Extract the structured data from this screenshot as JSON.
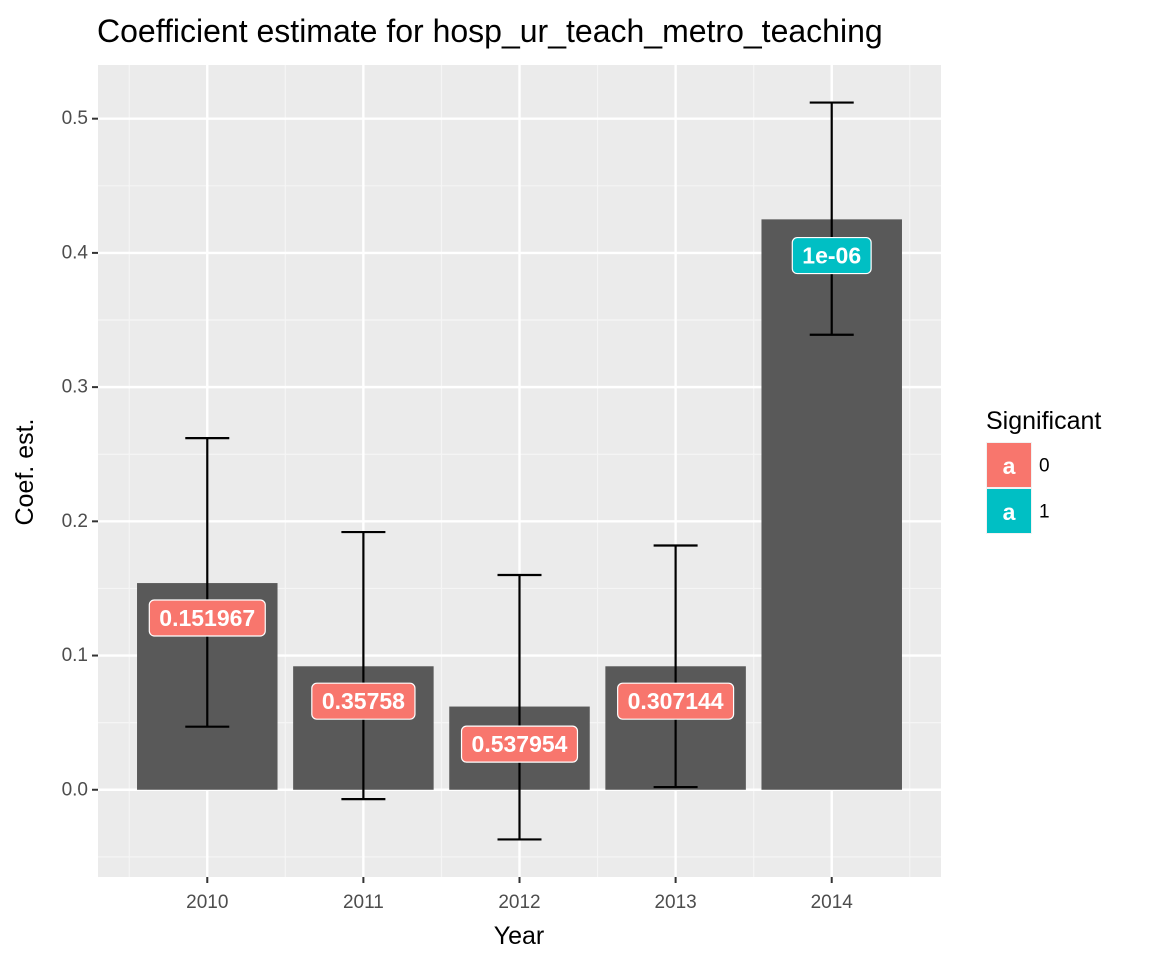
{
  "chart_data": {
    "type": "bar",
    "title": "Coefficient estimate for hosp_ur_teach_metro_teaching",
    "xlabel": "Year",
    "ylabel": "Coef. est.",
    "categories": [
      "2010",
      "2011",
      "2012",
      "2013",
      "2014"
    ],
    "values": [
      0.154,
      0.092,
      0.062,
      0.092,
      0.425
    ],
    "error_low": [
      0.047,
      -0.007,
      -0.037,
      0.002,
      0.339
    ],
    "error_high": [
      0.262,
      0.192,
      0.16,
      0.182,
      0.512
    ],
    "labels": [
      "0.151967",
      "0.35758",
      "0.537954",
      "0.307144",
      "1e-06"
    ],
    "label_y": [
      0.128,
      0.066,
      0.034,
      0.066,
      0.398
    ],
    "significant": [
      "0",
      "0",
      "0",
      "0",
      "1"
    ],
    "ylim": [
      -0.065,
      0.54
    ],
    "yticks": [
      0.0,
      0.1,
      0.2,
      0.3,
      0.4,
      0.5
    ],
    "ytick_labels": [
      "0.0",
      "0.1",
      "0.2",
      "0.3",
      "0.4",
      "0.5"
    ],
    "grid": true,
    "bar_color": "#595959",
    "panel_background": "#ebebeb",
    "legend": {
      "title": "Significant",
      "placement": "right",
      "entries": [
        {
          "key": "a",
          "label": "0",
          "color": "#f8766d"
        },
        {
          "key": "a",
          "label": "1",
          "color": "#00bfc4"
        }
      ]
    }
  }
}
